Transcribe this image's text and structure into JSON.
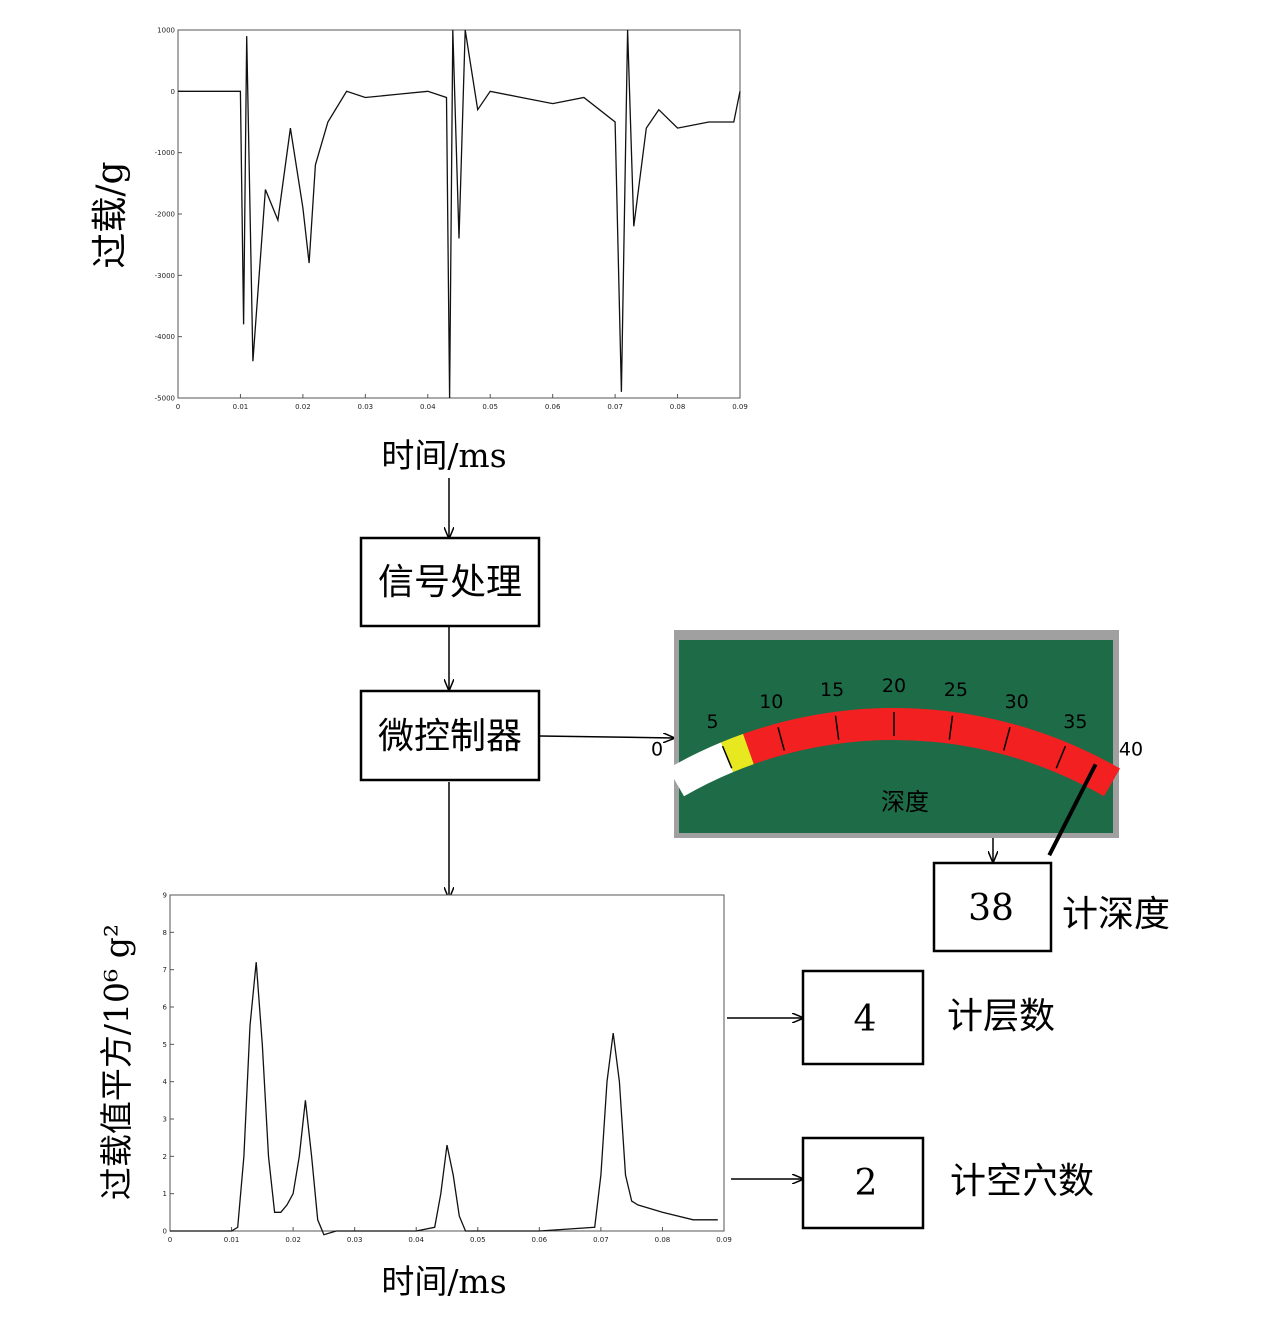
{
  "top_plot": {
    "ylabel": "过载/g",
    "xlabel": "时间/ms",
    "x_ticks": [
      "0",
      "0.01",
      "0.02",
      "0.03",
      "0.04",
      "0.05",
      "0.06",
      "0.07",
      "0.08",
      "0.09"
    ],
    "y_ticks": [
      "1000",
      "0",
      "-1000",
      "-2000",
      "-3000",
      "-4000",
      "-5000"
    ]
  },
  "blocks": {
    "signal_processing": "信号处理",
    "microcontroller": "微控制器"
  },
  "gauge": {
    "label": "深度",
    "scale": [
      "0",
      "5",
      "10",
      "15",
      "20",
      "25",
      "30",
      "35",
      "40"
    ],
    "needle_value": 38,
    "colors": {
      "panel": "#1e6b48",
      "band": "#f22020",
      "low": "#ffffff",
      "warn": "#e8e820",
      "frame": "#8a8a8a"
    }
  },
  "bottom_plot": {
    "ylabel": "过载值平方/10⁶ g²",
    "xlabel": "时间/ms",
    "x_ticks": [
      "0",
      "0.01",
      "0.02",
      "0.03",
      "0.04",
      "0.05",
      "0.06",
      "0.07",
      "0.08",
      "0.09"
    ],
    "y_ticks": [
      "9",
      "8",
      "7",
      "6",
      "5",
      "4",
      "3",
      "2",
      "1",
      "0"
    ]
  },
  "outputs": {
    "depth": {
      "value": "38",
      "label": "计深度"
    },
    "layers": {
      "value": "4",
      "label": "计层数"
    },
    "voids": {
      "value": "2",
      "label": "计空穴数"
    }
  },
  "chart_data": [
    {
      "type": "line",
      "ylabel": "过载/g",
      "xlabel": "时间/ms",
      "xlim": [
        0,
        0.09
      ],
      "ylim": [
        -5000,
        1000
      ],
      "x": [
        0,
        0.01,
        0.0105,
        0.011,
        0.012,
        0.014,
        0.016,
        0.018,
        0.02,
        0.021,
        0.022,
        0.024,
        0.027,
        0.03,
        0.035,
        0.04,
        0.043,
        0.0435,
        0.044,
        0.045,
        0.046,
        0.048,
        0.05,
        0.055,
        0.06,
        0.065,
        0.07,
        0.071,
        0.072,
        0.073,
        0.075,
        0.077,
        0.08,
        0.085,
        0.089,
        0.09
      ],
      "series": [
        {
          "values": [
            0,
            0,
            -3800,
            900,
            -4400,
            -1600,
            -2100,
            -600,
            -1900,
            -2800,
            -1200,
            -500,
            0,
            -100,
            -50,
            0,
            -100,
            -5000,
            1000,
            -2400,
            1000,
            -300,
            0,
            -100,
            -200,
            -100,
            -500,
            -4900,
            1000,
            -2200,
            -600,
            -300,
            -600,
            -500,
            -500,
            0
          ]
        }
      ]
    },
    {
      "type": "line",
      "ylabel": "过载值平方/10⁶ g²",
      "xlabel": "时间/ms",
      "xlim": [
        0,
        0.09
      ],
      "ylim": [
        0,
        9
      ],
      "x": [
        0,
        0.01,
        0.011,
        0.012,
        0.013,
        0.014,
        0.015,
        0.016,
        0.017,
        0.018,
        0.019,
        0.02,
        0.021,
        0.022,
        0.023,
        0.024,
        0.025,
        0.027,
        0.03,
        0.04,
        0.043,
        0.044,
        0.045,
        0.046,
        0.047,
        0.048,
        0.05,
        0.06,
        0.069,
        0.07,
        0.071,
        0.072,
        0.073,
        0.074,
        0.075,
        0.076,
        0.08,
        0.085,
        0.089
      ],
      "series": [
        {
          "values": [
            0,
            0,
            0.1,
            2,
            5.5,
            7.2,
            5,
            2,
            0.5,
            0.5,
            0.7,
            1,
            2,
            3.5,
            2,
            0.3,
            -0.1,
            0,
            0,
            0,
            0.1,
            1,
            2.3,
            1.5,
            0.4,
            0,
            0,
            0,
            0.1,
            1.5,
            4,
            5.3,
            4,
            1.5,
            0.8,
            0.7,
            0.5,
            0.3,
            0.3
          ]
        }
      ]
    }
  ]
}
